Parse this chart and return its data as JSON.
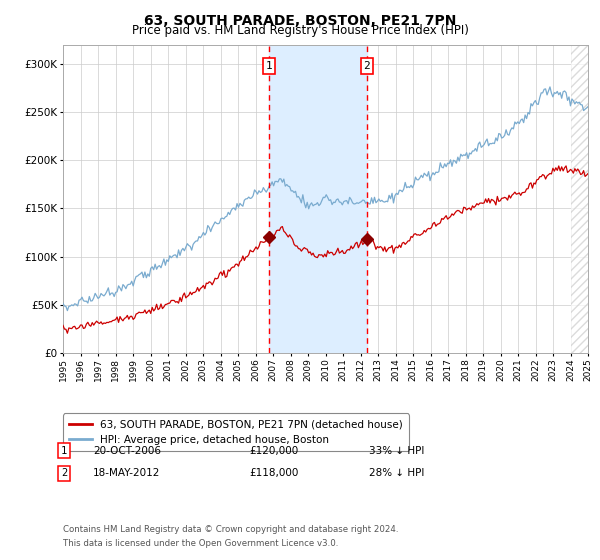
{
  "title": "63, SOUTH PARADE, BOSTON, PE21 7PN",
  "subtitle": "Price paid vs. HM Land Registry's House Price Index (HPI)",
  "ylim": [
    0,
    320000
  ],
  "yticks": [
    0,
    50000,
    100000,
    150000,
    200000,
    250000,
    300000
  ],
  "ytick_labels": [
    "£0",
    "£50K",
    "£100K",
    "£150K",
    "£200K",
    "£250K",
    "£300K"
  ],
  "xstart_year": 1995,
  "xend_year": 2025,
  "hpi_color": "#7aabcf",
  "price_color": "#cc0000",
  "sale1_date_label": "20-OCT-2006",
  "sale1_price_label": "£120,000",
  "sale1_pct": "33% ↓ HPI",
  "sale1_year": 2006.79,
  "sale2_date_label": "18-MAY-2012",
  "sale2_price_label": "£118,000",
  "sale2_pct": "28% ↓ HPI",
  "sale2_year": 2012.37,
  "legend_label1": "63, SOUTH PARADE, BOSTON, PE21 7PN (detached house)",
  "legend_label2": "HPI: Average price, detached house, Boston",
  "footnote1": "Contains HM Land Registry data © Crown copyright and database right 2024.",
  "footnote2": "This data is licensed under the Open Government Licence v3.0.",
  "shaded_region_color": "#ddeeff",
  "background_color": "#ffffff",
  "grid_color": "#cccccc"
}
